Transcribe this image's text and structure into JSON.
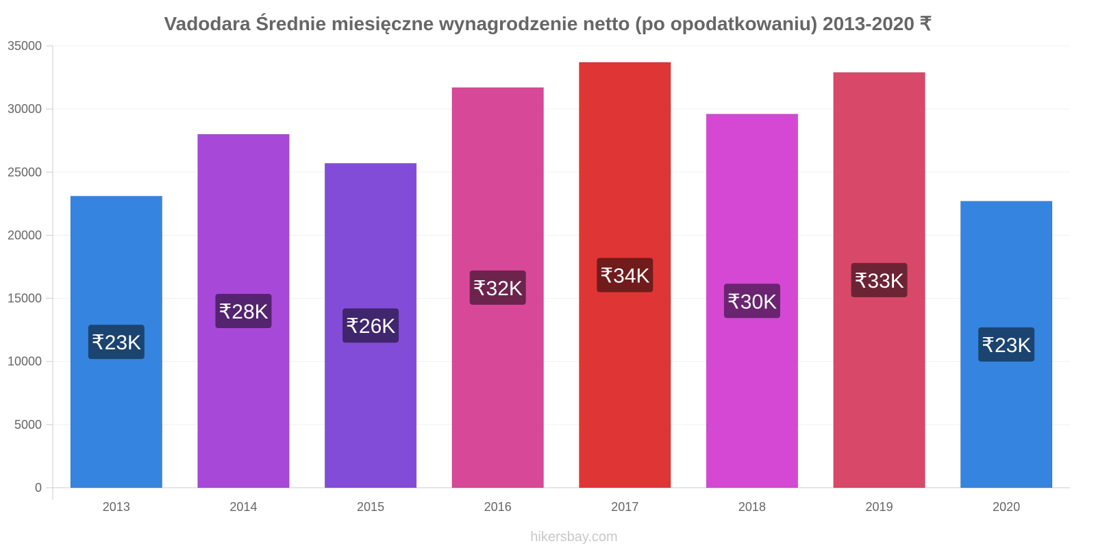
{
  "chart_data": {
    "type": "bar",
    "title": "Vadodara Średnie miesięczne wynagrodzenie netto (po opodatkowaniu) 2013-2020 ₹",
    "categories": [
      "2013",
      "2014",
      "2015",
      "2016",
      "2017",
      "2018",
      "2019",
      "2020"
    ],
    "values": [
      23100,
      28000,
      25700,
      31700,
      33700,
      29600,
      32900,
      22700
    ],
    "data_labels": [
      "₹23K",
      "₹28K",
      "₹26K",
      "₹32K",
      "₹34K",
      "₹30K",
      "₹33K",
      "₹23K"
    ],
    "ylim": [
      0,
      35000
    ],
    "yticks": [
      0,
      5000,
      10000,
      15000,
      20000,
      25000,
      30000,
      35000
    ],
    "xlabel": "",
    "ylabel": "",
    "grid": true,
    "legend": "none",
    "bar_colors": [
      "#3584e0",
      "#a848d8",
      "#824cd8",
      "#d84898",
      "#e03535",
      "#d448d4",
      "#d84868",
      "#3584e0"
    ],
    "label_bg_colors": [
      "#1c4470",
      "#542470",
      "#40266c",
      "#6c244c",
      "#701c1c",
      "#6a2470",
      "#6c2434",
      "#1c4470"
    ]
  },
  "watermark": "hikersbay.com"
}
